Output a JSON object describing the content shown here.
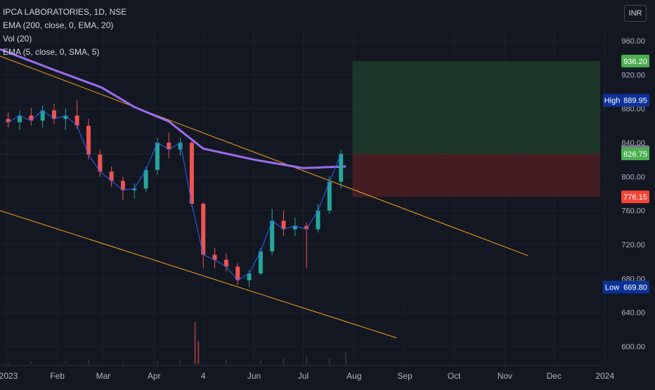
{
  "header": {
    "symbol": "IPCA LABORATORIES, 1D, NSE",
    "indicators": [
      "EMA (200, close, 0, EMA, 20)",
      "Vol (20)",
      "EMA (5, close, 0, SMA, 5)"
    ],
    "currency": "INR"
  },
  "colors": {
    "background": "#131722",
    "up": "#26a69a",
    "down": "#ef5350",
    "grid": "#1e222d",
    "axis_text": "#b2b5be",
    "ema200": "#9b6cf0",
    "ema5": "#2962ff",
    "trendline": "#f7a21b",
    "volume": "#2962ff",
    "target_zone": "#1e3a2a",
    "stop_zone": "#4a1e24",
    "target_badge": "#4caf50",
    "stop_badge": "#f44336",
    "high_low_badge": "#0c3299",
    "last_badge": "#4caf50",
    "ema_badge": "#787b86"
  },
  "chart_data": {
    "type": "candlestick",
    "x_labels": [
      "2023",
      "Feb",
      "Mar",
      "Apr",
      "4",
      "Jun",
      "Jul",
      "Aug",
      "Sep",
      "Oct",
      "Nov",
      "Dec",
      "2024"
    ],
    "y_ticks": [
      "960.00",
      "920.00",
      "880.00",
      "840.00",
      "800.00",
      "760.00",
      "720.00",
      "680.00",
      "640.00",
      "600.00"
    ],
    "ylim": [
      590,
      975
    ],
    "price_markers": {
      "target": "936.20",
      "high_label": "High",
      "high": "889.95",
      "ema200": "829.50",
      "last": "826.75",
      "stop": "776.15",
      "low_label": "Low",
      "low": "669.80"
    },
    "position": {
      "entry": 826.75,
      "target": 936.2,
      "stop": 776.15
    },
    "ema200": [
      {
        "date": "2022-12-28",
        "v": 950
      },
      {
        "date": "2023-01-31",
        "v": 925
      },
      {
        "date": "2023-02-28",
        "v": 905
      },
      {
        "date": "2023-03-20",
        "v": 882
      },
      {
        "date": "2023-04-10",
        "v": 865
      },
      {
        "date": "2023-05-01",
        "v": 833
      },
      {
        "date": "2023-06-01",
        "v": 820
      },
      {
        "date": "2023-07-01",
        "v": 810
      },
      {
        "date": "2023-07-27",
        "v": 812
      }
    ],
    "trendlines": [
      {
        "from": {
          "date": "2022-12-28",
          "v": 942
        },
        "to": {
          "date": "2023-11-15",
          "v": 707
        }
      },
      {
        "from": {
          "date": "2022-12-28",
          "v": 760
        },
        "to": {
          "date": "2023-08-27",
          "v": 610
        }
      }
    ],
    "candles": [
      {
        "date": "2023-01-02",
        "o": 868,
        "h": 876,
        "l": 858,
        "c": 864
      },
      {
        "date": "2023-01-09",
        "o": 864,
        "h": 878,
        "l": 855,
        "c": 872
      },
      {
        "date": "2023-01-16",
        "o": 872,
        "h": 881,
        "l": 860,
        "c": 866
      },
      {
        "date": "2023-01-23",
        "o": 866,
        "h": 884,
        "l": 858,
        "c": 878
      },
      {
        "date": "2023-01-30",
        "o": 878,
        "h": 886,
        "l": 862,
        "c": 868
      },
      {
        "date": "2023-02-06",
        "o": 868,
        "h": 880,
        "l": 855,
        "c": 872
      },
      {
        "date": "2023-02-13",
        "o": 872,
        "h": 890,
        "l": 856,
        "c": 860
      },
      {
        "date": "2023-02-20",
        "o": 860,
        "h": 868,
        "l": 820,
        "c": 826
      },
      {
        "date": "2023-02-27",
        "o": 826,
        "h": 832,
        "l": 800,
        "c": 806
      },
      {
        "date": "2023-03-06",
        "o": 806,
        "h": 812,
        "l": 788,
        "c": 795
      },
      {
        "date": "2023-03-13",
        "o": 795,
        "h": 800,
        "l": 772,
        "c": 784
      },
      {
        "date": "2023-03-20",
        "o": 784,
        "h": 792,
        "l": 774,
        "c": 786
      },
      {
        "date": "2023-03-27",
        "o": 786,
        "h": 812,
        "l": 782,
        "c": 808
      },
      {
        "date": "2023-04-03",
        "o": 808,
        "h": 846,
        "l": 802,
        "c": 840
      },
      {
        "date": "2023-04-10",
        "o": 840,
        "h": 852,
        "l": 822,
        "c": 832
      },
      {
        "date": "2023-04-17",
        "o": 832,
        "h": 846,
        "l": 825,
        "c": 840
      },
      {
        "date": "2023-04-24",
        "o": 840,
        "h": 842,
        "l": 765,
        "c": 768
      },
      {
        "date": "2023-05-01",
        "o": 768,
        "h": 770,
        "l": 692,
        "c": 708
      },
      {
        "date": "2023-05-08",
        "o": 708,
        "h": 716,
        "l": 692,
        "c": 702
      },
      {
        "date": "2023-05-15",
        "o": 702,
        "h": 710,
        "l": 688,
        "c": 694
      },
      {
        "date": "2023-05-22",
        "o": 694,
        "h": 698,
        "l": 672,
        "c": 678
      },
      {
        "date": "2023-05-29",
        "o": 678,
        "h": 690,
        "l": 670,
        "c": 686
      },
      {
        "date": "2023-06-05",
        "o": 686,
        "h": 716,
        "l": 684,
        "c": 712
      },
      {
        "date": "2023-06-12",
        "o": 712,
        "h": 762,
        "l": 708,
        "c": 748
      },
      {
        "date": "2023-06-19",
        "o": 748,
        "h": 760,
        "l": 730,
        "c": 738
      },
      {
        "date": "2023-06-26",
        "o": 738,
        "h": 752,
        "l": 730,
        "c": 742
      },
      {
        "date": "2023-07-03",
        "o": 742,
        "h": 746,
        "l": 692,
        "c": 738
      },
      {
        "date": "2023-07-10",
        "o": 738,
        "h": 768,
        "l": 734,
        "c": 760
      },
      {
        "date": "2023-07-17",
        "o": 760,
        "h": 800,
        "l": 756,
        "c": 794
      },
      {
        "date": "2023-07-24",
        "o": 794,
        "h": 832,
        "l": 786,
        "c": 826.75
      }
    ],
    "volume": [
      {
        "date": "2023-01-02",
        "v": 0.5
      },
      {
        "date": "2023-01-16",
        "v": 0.7
      },
      {
        "date": "2023-02-06",
        "v": 0.9
      },
      {
        "date": "2023-02-20",
        "v": 1.2
      },
      {
        "date": "2023-03-13",
        "v": 0.6
      },
      {
        "date": "2023-04-03",
        "v": 0.8
      },
      {
        "date": "2023-04-17",
        "v": 1.0
      },
      {
        "date": "2023-04-26",
        "v": 12.0
      },
      {
        "date": "2023-04-28",
        "v": 6.5
      },
      {
        "date": "2023-05-15",
        "v": 1.1
      },
      {
        "date": "2023-06-05",
        "v": 0.9
      },
      {
        "date": "2023-06-19",
        "v": 1.5
      },
      {
        "date": "2023-07-03",
        "v": 2.2
      },
      {
        "date": "2023-07-17",
        "v": 1.6
      },
      {
        "date": "2023-07-27",
        "v": 3.4
      }
    ]
  }
}
